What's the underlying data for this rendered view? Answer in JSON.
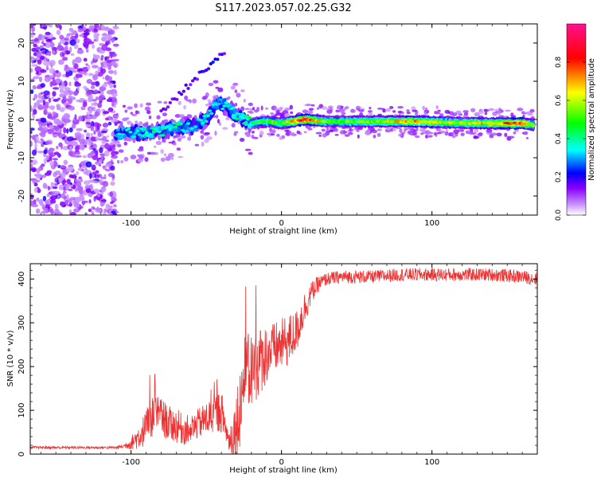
{
  "title": "S117.2023.057.02.25.G32",
  "chart_data": [
    {
      "type": "heatmap",
      "xlabel": "Height of straight line (km)",
      "ylabel": "Frequency (Hz)",
      "xlim": [
        -167,
        170
      ],
      "ylim": [
        -25,
        25
      ],
      "x_ticks": [
        -100,
        0,
        100
      ],
      "y_ticks": [
        -20,
        -10,
        0,
        10,
        20
      ],
      "colorbar": {
        "label": "Normalized spectral amplitude",
        "range": [
          0.0,
          1.0
        ],
        "ticks": [
          0.0,
          0.2,
          0.4,
          0.6,
          0.8
        ],
        "colors": [
          "#ffffff",
          "#8a00ff",
          "#0000ff",
          "#00ffff",
          "#00ff00",
          "#ffff00",
          "#ff0000",
          "#ff1090"
        ]
      },
      "ridge": [
        {
          "x": -110,
          "y": -3.5,
          "a": 0.35
        },
        {
          "x": -100,
          "y": -3.5,
          "a": 0.35
        },
        {
          "x": -90,
          "y": -3.5,
          "a": 0.4
        },
        {
          "x": -80,
          "y": -3.0,
          "a": 0.4
        },
        {
          "x": -70,
          "y": -2.0,
          "a": 0.4
        },
        {
          "x": -60,
          "y": -2.0,
          "a": 0.35
        },
        {
          "x": -50,
          "y": 0.0,
          "a": 0.35
        },
        {
          "x": -42,
          "y": 4.5,
          "a": 0.35
        },
        {
          "x": -35,
          "y": 3.0,
          "a": 0.4
        },
        {
          "x": -28,
          "y": 0.5,
          "a": 0.4
        },
        {
          "x": -20,
          "y": -1.0,
          "a": 0.45
        },
        {
          "x": -10,
          "y": -0.5,
          "a": 0.55
        },
        {
          "x": 0,
          "y": -1.0,
          "a": 0.55
        },
        {
          "x": 15,
          "y": 0.0,
          "a": 0.9
        },
        {
          "x": 30,
          "y": -0.5,
          "a": 0.55
        },
        {
          "x": 60,
          "y": -0.5,
          "a": 0.6
        },
        {
          "x": 90,
          "y": -0.5,
          "a": 0.75
        },
        {
          "x": 110,
          "y": -0.8,
          "a": 0.6
        },
        {
          "x": 140,
          "y": -1.0,
          "a": 0.7
        },
        {
          "x": 160,
          "y": -1.0,
          "a": 0.85
        },
        {
          "x": 168,
          "y": -1.5,
          "a": 0.5
        }
      ]
    },
    {
      "type": "line",
      "xlabel": "Height of straight line (km)",
      "ylabel": "SNR (10 * v/v)",
      "xlim": [
        -167,
        170
      ],
      "ylim": [
        0,
        435
      ],
      "x_ticks": [
        -100,
        0,
        100
      ],
      "y_ticks": [
        0,
        100,
        200,
        300,
        400
      ],
      "color": "#f03030",
      "x": [
        -167,
        -110,
        -105,
        -100,
        -95,
        -90,
        -85,
        -80,
        -75,
        -70,
        -65,
        -60,
        -55,
        -50,
        -45,
        -40,
        -35,
        -30,
        -25,
        -20,
        -15,
        -10,
        -5,
        0,
        5,
        10,
        15,
        20,
        25,
        30,
        40,
        60,
        80,
        100,
        120,
        140,
        160,
        170
      ],
      "y": [
        15,
        15,
        18,
        25,
        40,
        60,
        90,
        85,
        70,
        65,
        55,
        55,
        70,
        80,
        90,
        100,
        30,
        60,
        170,
        190,
        210,
        230,
        240,
        250,
        260,
        280,
        330,
        370,
        390,
        400,
        405,
        405,
        410,
        410,
        410,
        410,
        405,
        400
      ],
      "noise": [
        3,
        3,
        5,
        15,
        30,
        40,
        50,
        45,
        40,
        40,
        35,
        35,
        35,
        40,
        45,
        50,
        25,
        90,
        100,
        90,
        80,
        70,
        60,
        60,
        60,
        50,
        40,
        25,
        18,
        15,
        15,
        15,
        15,
        15,
        15,
        15,
        15,
        15
      ]
    }
  ]
}
